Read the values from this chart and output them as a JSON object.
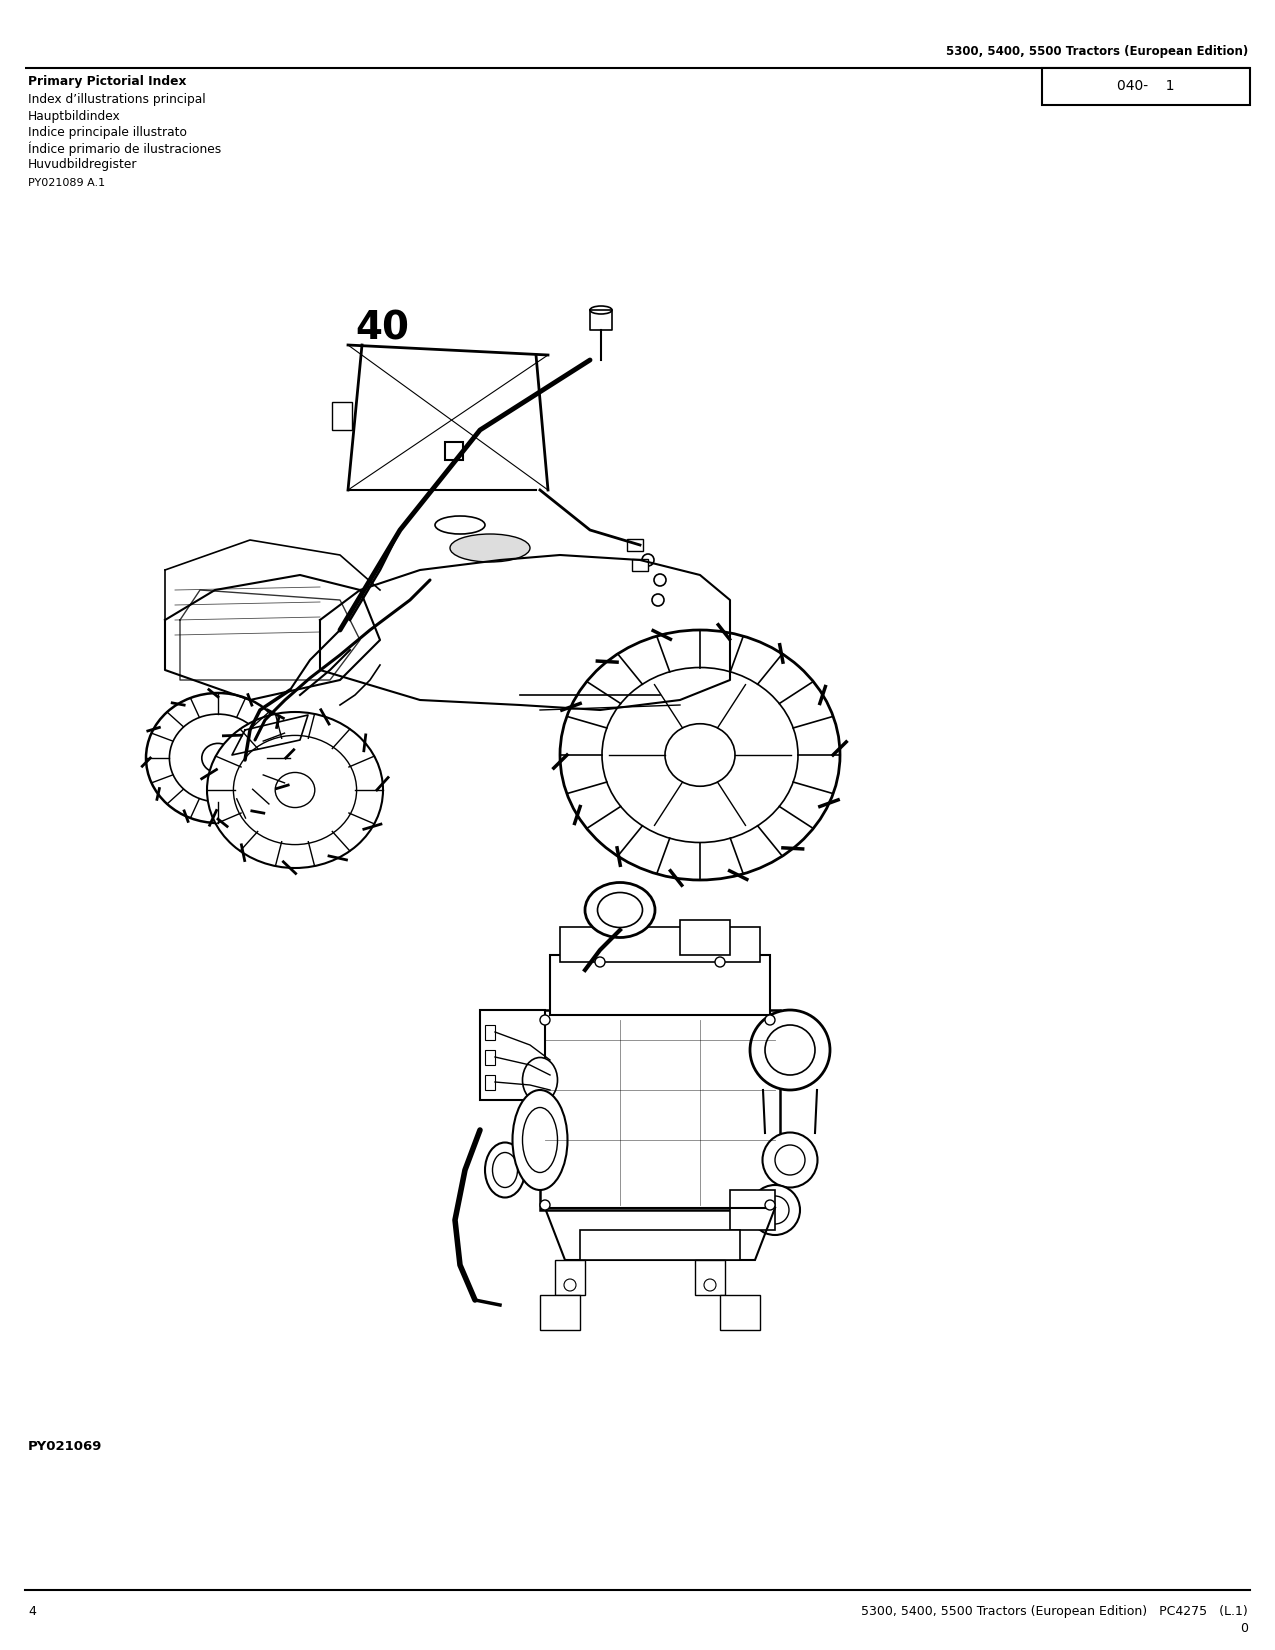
{
  "page_width": 12.75,
  "page_height": 16.5,
  "dpi": 100,
  "background_color": "#ffffff",
  "top_header_text": "5300, 5400, 5500 Tractors (European Edition)",
  "page_id_text": "040-    1",
  "left_header_lines": [
    "Primary Pictorial Index",
    "Index d’illustrations principal",
    "Hauptbildindex",
    "Indice principale illustrato",
    "Índice primario de ilustraciones",
    "Huvudbildregister"
  ],
  "part_number_label": "PY021089 A.1",
  "figure_number": "40",
  "footer_left_text": "4",
  "footer_right_text": "5300, 5400, 5500 Tractors (European Edition)   PC4275   (L.1)",
  "footer_right_text2": "0",
  "bottom_label": "PY021069",
  "line_color": "#000000"
}
